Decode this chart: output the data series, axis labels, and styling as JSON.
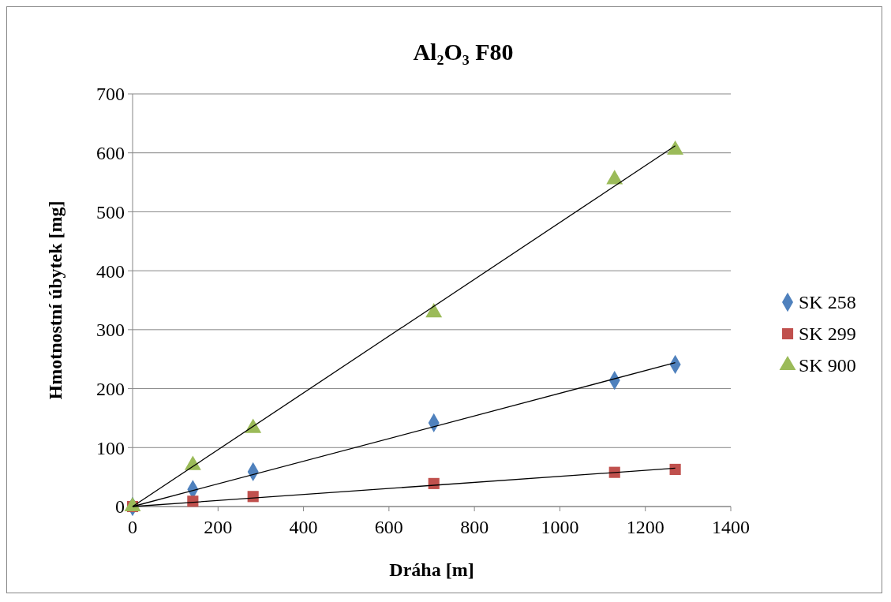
{
  "chart_data": {
    "type": "scatter",
    "title": "Al₂O₃ F80",
    "xlabel": "Dráha [m]",
    "ylabel": "Hmotnostní úbytek [mg]",
    "xlim": [
      0,
      1400
    ],
    "xticks": [
      0,
      200,
      400,
      600,
      800,
      1000,
      1200,
      1400
    ],
    "ylim": [
      0,
      700
    ],
    "yticks": [
      0,
      100,
      200,
      300,
      400,
      500,
      600,
      700
    ],
    "grid": "y",
    "legend": "right",
    "series": [
      {
        "name": "SK 258",
        "color": "#4f81bd",
        "marker": "diamond",
        "x": [
          0,
          141,
          282,
          705,
          1128,
          1270
        ],
        "values": [
          0,
          29,
          59,
          142,
          214,
          241
        ]
      },
      {
        "name": "SK 299",
        "color": "#c0504d",
        "marker": "square",
        "x": [
          0,
          141,
          282,
          705,
          1128,
          1270
        ],
        "values": [
          0,
          9,
          17,
          39,
          58,
          63
        ]
      },
      {
        "name": "SK 900",
        "color": "#9bbb59",
        "marker": "triangle",
        "x": [
          0,
          141,
          282,
          705,
          1128,
          1270
        ],
        "values": [
          0,
          70,
          133,
          329,
          555,
          605
        ]
      },
      {
        "type": "line",
        "color": "#000000",
        "marker": "none",
        "x": [
          0,
          1270
        ],
        "values": [
          0,
          244
        ]
      },
      {
        "type": "line",
        "color": "#000000",
        "marker": "none",
        "x": [
          0,
          1270
        ],
        "values": [
          0,
          65
        ]
      },
      {
        "type": "line",
        "color": "#000000",
        "marker": "none",
        "x": [
          0,
          1270
        ],
        "values": [
          0,
          612
        ]
      }
    ]
  }
}
